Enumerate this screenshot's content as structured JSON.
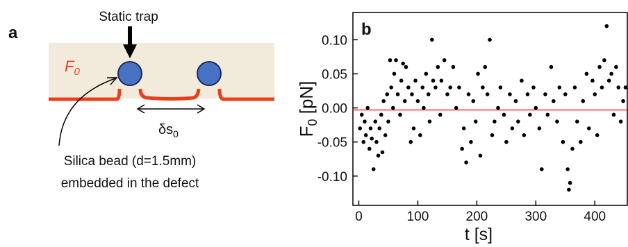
{
  "diagram": {
    "panel_label": "a",
    "trap_label": "Static trap",
    "force_label": {
      "main": "F",
      "sub": "0"
    },
    "spacing_label": {
      "main": "δs",
      "sub": "0"
    },
    "bead_caption": [
      "Silica bead (d=1.5mm)",
      "embedded in the defect"
    ]
  },
  "chart_data": {
    "type": "scatter",
    "panel_label": "b",
    "x_label": "t [s]",
    "y_label": {
      "main": "F",
      "sub": "0",
      "rest": " [pN]"
    },
    "x": [
      2,
      5,
      8,
      10,
      12,
      15,
      18,
      20,
      22,
      25,
      28,
      30,
      33,
      35,
      38,
      40,
      42,
      45,
      48,
      50,
      53,
      55,
      58,
      60,
      63,
      66,
      70,
      72,
      75,
      78,
      80,
      84,
      88,
      90,
      93,
      96,
      100,
      104,
      108,
      110,
      114,
      118,
      120,
      124,
      126,
      130,
      134,
      138,
      140,
      145,
      150,
      155,
      160,
      165,
      170,
      175,
      178,
      182,
      186,
      190,
      194,
      198,
      202,
      206,
      210,
      214,
      218,
      222,
      226,
      230,
      236,
      240,
      246,
      250,
      256,
      260,
      266,
      270,
      276,
      280,
      286,
      290,
      296,
      300,
      306,
      310,
      316,
      320,
      326,
      330,
      336,
      340,
      346,
      350,
      354,
      356,
      358,
      362,
      366,
      370,
      376,
      380,
      386,
      390,
      396,
      400,
      404,
      408,
      412,
      416,
      420,
      424,
      428,
      432,
      436,
      440,
      444,
      448,
      452
    ],
    "values": [
      -0.03,
      -0.01,
      -0.05,
      -0.02,
      -0.04,
      0.0,
      -0.06,
      -0.03,
      -0.045,
      -0.09,
      -0.02,
      -0.05,
      -0.07,
      -0.03,
      -0.01,
      -0.065,
      0.01,
      -0.04,
      0.02,
      -0.02,
      0.07,
      0.03,
      0.0,
      0.05,
      0.07,
      0.02,
      -0.01,
      0.04,
      0.065,
      0.01,
      0.06,
      0.03,
      -0.05,
      0.02,
      -0.03,
      0.04,
      0.01,
      -0.04,
      0.03,
      0.0,
      0.05,
      0.02,
      -0.02,
      0.1,
      0.04,
      0.03,
      0.06,
      -0.01,
      0.04,
      0.07,
      0.02,
      0.03,
      0.06,
      0.0,
      0.03,
      -0.06,
      -0.03,
      -0.08,
      0.02,
      -0.05,
      0.01,
      -0.02,
      0.05,
      -0.07,
      0.03,
      0.06,
      0.02,
      0.1,
      -0.04,
      -0.02,
      0.0,
      0.03,
      -0.01,
      -0.05,
      0.02,
      -0.03,
      0.01,
      -0.02,
      0.04,
      -0.04,
      0.02,
      -0.01,
      0.03,
      0.0,
      -0.03,
      -0.09,
      0.02,
      -0.01,
      0.06,
      0.01,
      -0.02,
      0.03,
      -0.05,
      0.02,
      -0.09,
      -0.12,
      -0.11,
      -0.06,
      0.03,
      -0.02,
      -0.05,
      0.01,
      0.05,
      -0.03,
      0.04,
      0.02,
      -0.04,
      0.06,
      0.03,
      0.07,
      0.12,
      0.04,
      0.05,
      -0.01,
      0.06,
      0.03,
      -0.02,
      0.01,
      0.03
    ],
    "color": "#000000",
    "reference_line": {
      "value": -0.003,
      "color": "#ff0000"
    },
    "xlim": [
      -10,
      455
    ],
    "ylim": [
      -0.143,
      0.14
    ],
    "xticks": [
      0,
      100,
      200,
      300,
      400
    ],
    "yticks": [
      {
        "value": 0.1,
        "label": "0.10"
      },
      0.05,
      {
        "value": 0,
        "label": "0.00"
      },
      {
        "value": -0.05,
        "label": "-0.05"
      },
      {
        "value": -0.1,
        "label": "-0.10"
      }
    ]
  }
}
